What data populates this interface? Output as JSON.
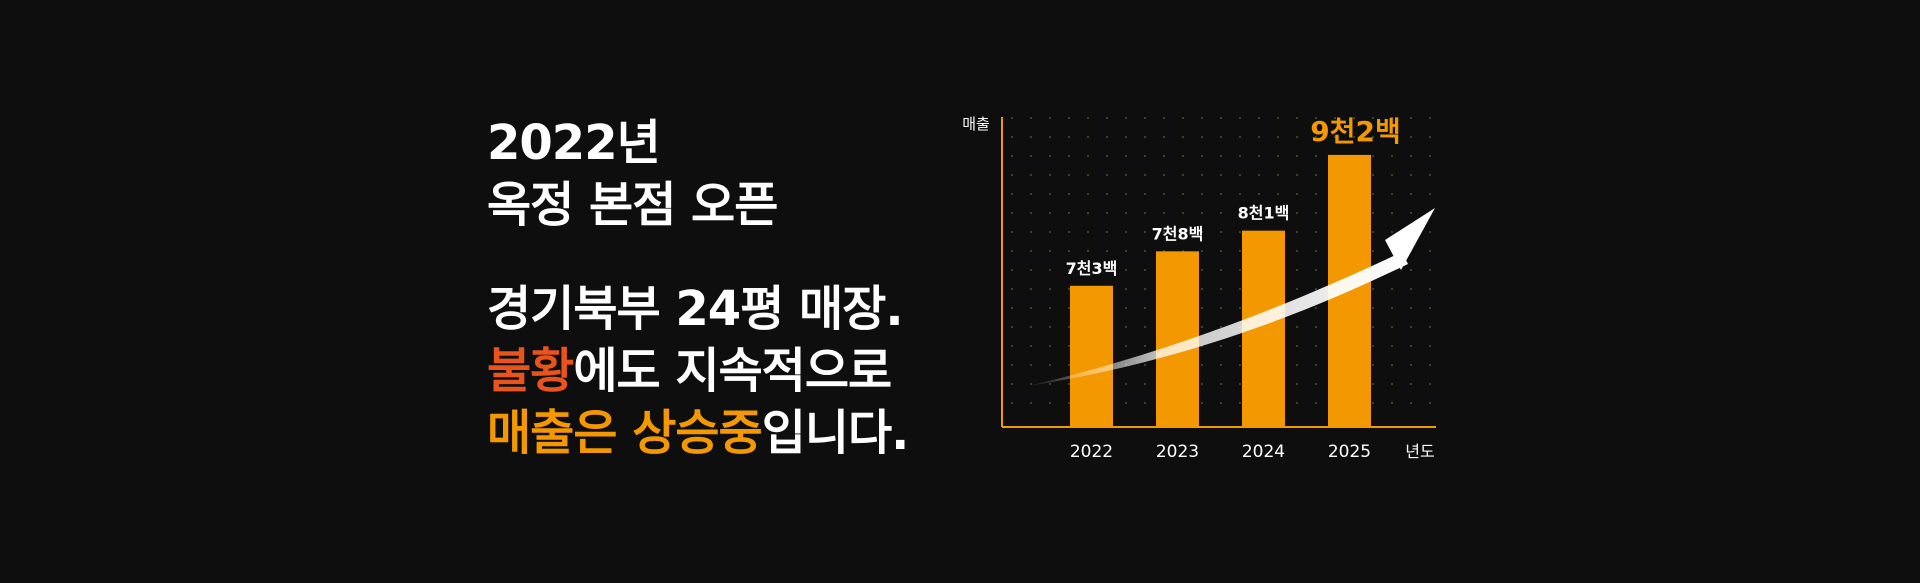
{
  "colors": {
    "background": "#0e0e0e",
    "text": "#ffffff",
    "accent_red": "#e8541c",
    "accent_orange": "#f39800",
    "bar": "#f39800",
    "grid_dot": "#3f5a1a",
    "axis": "#f39800"
  },
  "headline": {
    "line1": "2022년",
    "line2": "옥정 본점 오픈"
  },
  "body": {
    "line1": "경기북부 24평 매장.",
    "line2_accent": "불황",
    "line2_rest": "에도 지속적으로",
    "line3_accent1": "매출은",
    "line3_space": " ",
    "line3_accent2": "상승중",
    "line3_rest": "입니다."
  },
  "chart_data": {
    "type": "bar",
    "ylabel": "매출",
    "xlabel": "년도",
    "categories": [
      "2022",
      "2023",
      "2024",
      "2025"
    ],
    "values": [
      7300,
      7800,
      8100,
      9200
    ],
    "data_labels": [
      "7천3백",
      "7천8백",
      "8천1백",
      "9천2백"
    ],
    "ylim": [
      5250,
      9750
    ],
    "grid": "dotted",
    "annotation": "rising-trend-arrow-icon"
  }
}
